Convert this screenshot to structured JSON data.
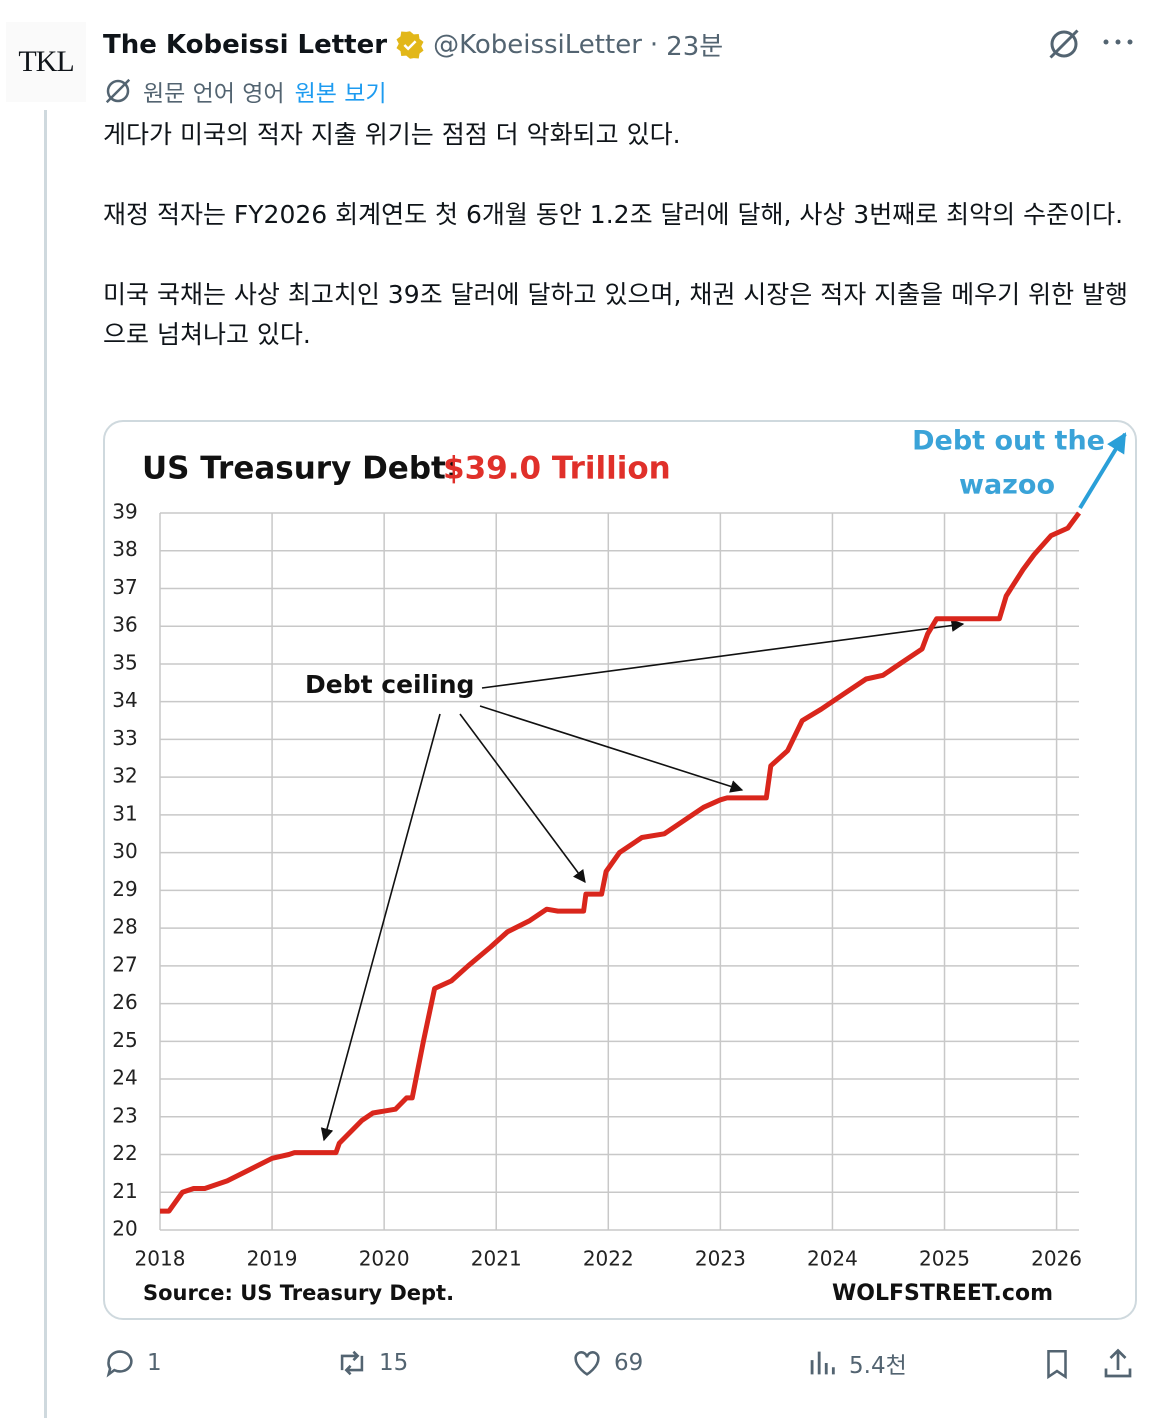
{
  "tweet": {
    "avatar": "TKL",
    "name": "The Kobeissi Letter",
    "handle": "@KobeissiLetter",
    "separator": "·",
    "time": "23분",
    "translation_note": "원문 언어 영어",
    "show_original": "원본 보기",
    "paragraphs": [
      "게다가 미국의 적자 지출 위기는 점점 더 악화되고 있다.",
      "재정 적자는 FY2026 회계연도 첫 6개월 동안 1.2조 달러에 달해, 사상 3번째로 최악의 수준이다.",
      "미국 국채는 사상 최고치인 39조 달러에 달하고 있으며, 채권 시장은 적자 지출을 메우기 위한 발행으로 넘쳐나고 있다."
    ],
    "replies": "1",
    "reposts": "15",
    "likes": "69",
    "views": "5.4천"
  },
  "chart_data": {
    "type": "line",
    "title": "US Treasury Debt:",
    "title_value": "$39.0 Trillion",
    "title_value_color": "#e0302a",
    "annotations": [
      "Debt ceiling",
      "Debt out the",
      "wazoo"
    ],
    "source": "Source: US Treasury Dept.",
    "credit": "WOLFSTREET.com",
    "color": "#d9261c",
    "grid": true,
    "x": [
      2018.0,
      2018.08,
      2018.2,
      2018.3,
      2018.4,
      2018.6,
      2018.8,
      2019.0,
      2019.15,
      2019.2,
      2019.57,
      2019.6,
      2019.8,
      2019.9,
      2020.1,
      2020.2,
      2020.25,
      2020.35,
      2020.45,
      2020.6,
      2020.75,
      2020.95,
      2021.1,
      2021.3,
      2021.45,
      2021.55,
      2021.78,
      2021.8,
      2021.94,
      2021.98,
      2022.1,
      2022.3,
      2022.5,
      2022.7,
      2022.85,
      2023.0,
      2023.06,
      2023.41,
      2023.45,
      2023.6,
      2023.73,
      2023.9,
      2024.1,
      2024.3,
      2024.45,
      2024.65,
      2024.8,
      2024.85,
      2024.93,
      2025.05,
      2025.49,
      2025.55,
      2025.7,
      2025.8,
      2025.95,
      2026.1,
      2026.2
    ],
    "values": [
      20.5,
      20.5,
      21.0,
      21.1,
      21.1,
      21.3,
      21.6,
      21.9,
      22.0,
      22.05,
      22.05,
      22.3,
      22.9,
      23.1,
      23.2,
      23.5,
      23.5,
      25.0,
      26.4,
      26.6,
      27.0,
      27.5,
      27.9,
      28.2,
      28.5,
      28.45,
      28.45,
      28.9,
      28.9,
      29.5,
      30.0,
      30.4,
      30.5,
      30.9,
      31.2,
      31.4,
      31.45,
      31.45,
      32.3,
      32.7,
      33.5,
      33.8,
      34.2,
      34.6,
      34.7,
      35.1,
      35.4,
      35.8,
      36.2,
      36.2,
      36.2,
      36.8,
      37.5,
      37.9,
      38.4,
      38.6,
      39.0
    ],
    "xlim": [
      2018,
      2026.2
    ],
    "xticks": [
      2018,
      2019,
      2020,
      2021,
      2022,
      2023,
      2024,
      2025,
      2026
    ],
    "ylim": [
      20,
      39
    ],
    "yticks": [
      20,
      21,
      22,
      23,
      24,
      25,
      26,
      27,
      28,
      29,
      30,
      31,
      32,
      33,
      34,
      35,
      36,
      37,
      38,
      39
    ]
  }
}
